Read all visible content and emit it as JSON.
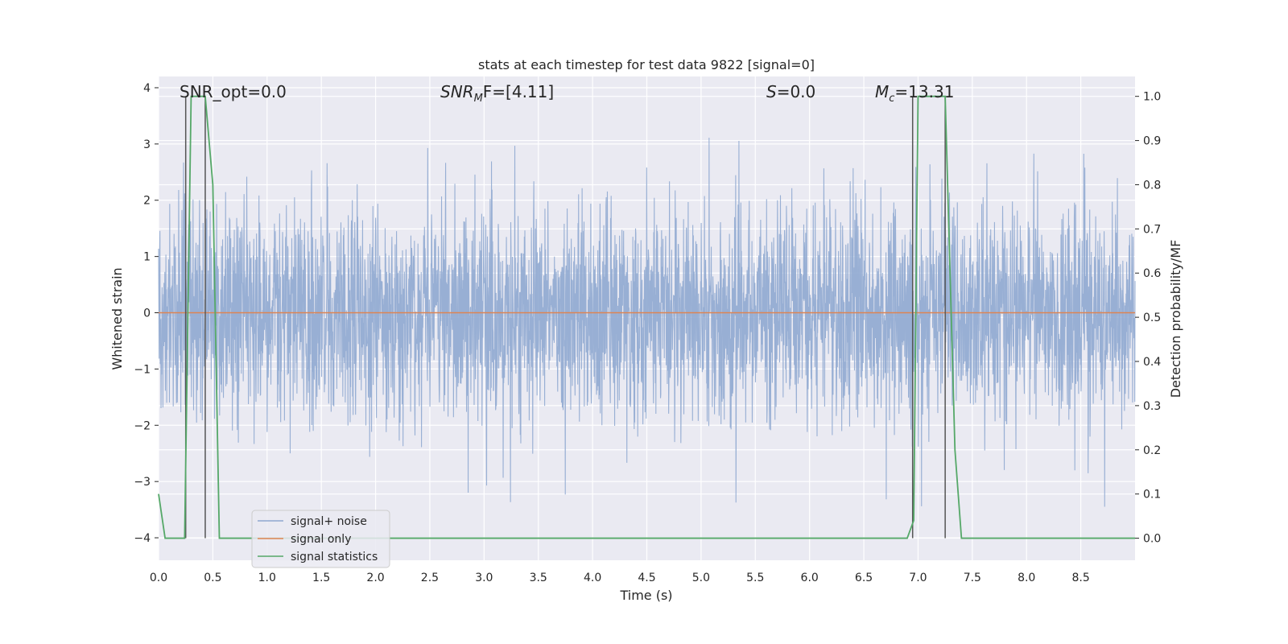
{
  "chart_data": {
    "type": "line",
    "title": "stats at each timestep for test data 9822 [signal=0]",
    "xlabel": "Time (s)",
    "ylabel_left": "Whitened strain",
    "ylabel_right": "Detection probability/MF",
    "xlim": [
      0.0,
      9.0
    ],
    "ylim_left": [
      -4.4,
      4.2
    ],
    "ylim_right": [
      -0.05,
      1.045
    ],
    "x_ticks": [
      "0.0",
      "0.5",
      "1.0",
      "1.5",
      "2.0",
      "2.5",
      "3.0",
      "3.5",
      "4.0",
      "4.5",
      "5.0",
      "5.5",
      "6.0",
      "6.5",
      "7.0",
      "7.5",
      "8.0",
      "8.5"
    ],
    "y_ticks_left": [
      "4",
      "3",
      "2",
      "1",
      "0",
      "−1",
      "−2",
      "−3",
      "−4"
    ],
    "y_ticks_right": [
      "1.0",
      "0.9",
      "0.8",
      "0.7",
      "0.6",
      "0.5",
      "0.4",
      "0.3",
      "0.2",
      "0.1",
      "0.0"
    ],
    "grid": true,
    "legend_position": "lower-left",
    "annotations": {
      "snr_opt": "SNR_opt=0.0",
      "snr_mf_base": "SNR",
      "snr_mf_sub": "M",
      "snr_mf_rest": "F=[4.11]",
      "s_label": "S",
      "s_value": "=0.0",
      "mc_label": "M",
      "mc_sub": "c",
      "mc_value": "=13.31"
    },
    "series": [
      {
        "name": "signal+ noise",
        "color": "#8fa8d0",
        "description_values": "noise band roughly within ±1.5 with spikes up to ~3.8 and down to ~-3.8",
        "noise_seed": 9822
      },
      {
        "name": "signal only",
        "color": "#dd8452",
        "x": [
          0.0,
          9.0
        ],
        "y": [
          0.0,
          0.0
        ]
      },
      {
        "name": "signal statistics",
        "color": "#55a868",
        "x": [
          0.0,
          0.06,
          0.12,
          0.18,
          0.24,
          0.3,
          0.36,
          0.43,
          0.5,
          0.56,
          6.9,
          6.96,
          7.0,
          7.25,
          7.34,
          7.4,
          9.0
        ],
        "y": [
          0.1,
          0.0,
          0.0,
          0.0,
          0.0,
          1.0,
          1.0,
          1.0,
          0.8,
          0.0,
          0.0,
          0.04,
          1.0,
          1.0,
          0.2,
          0.0,
          0.0
        ]
      }
    ],
    "vertical_markers": [
      {
        "x": 0.25,
        "ymin": 0.0,
        "ymax": 1.0,
        "color": "#555555"
      },
      {
        "x": 0.43,
        "ymin": 0.0,
        "ymax": 1.0,
        "color": "#555555"
      },
      {
        "x": 6.95,
        "ymin": 0.0,
        "ymax": 1.0,
        "color": "#555555"
      },
      {
        "x": 7.25,
        "ymin": 0.0,
        "ymax": 1.0,
        "color": "#555555"
      }
    ]
  }
}
